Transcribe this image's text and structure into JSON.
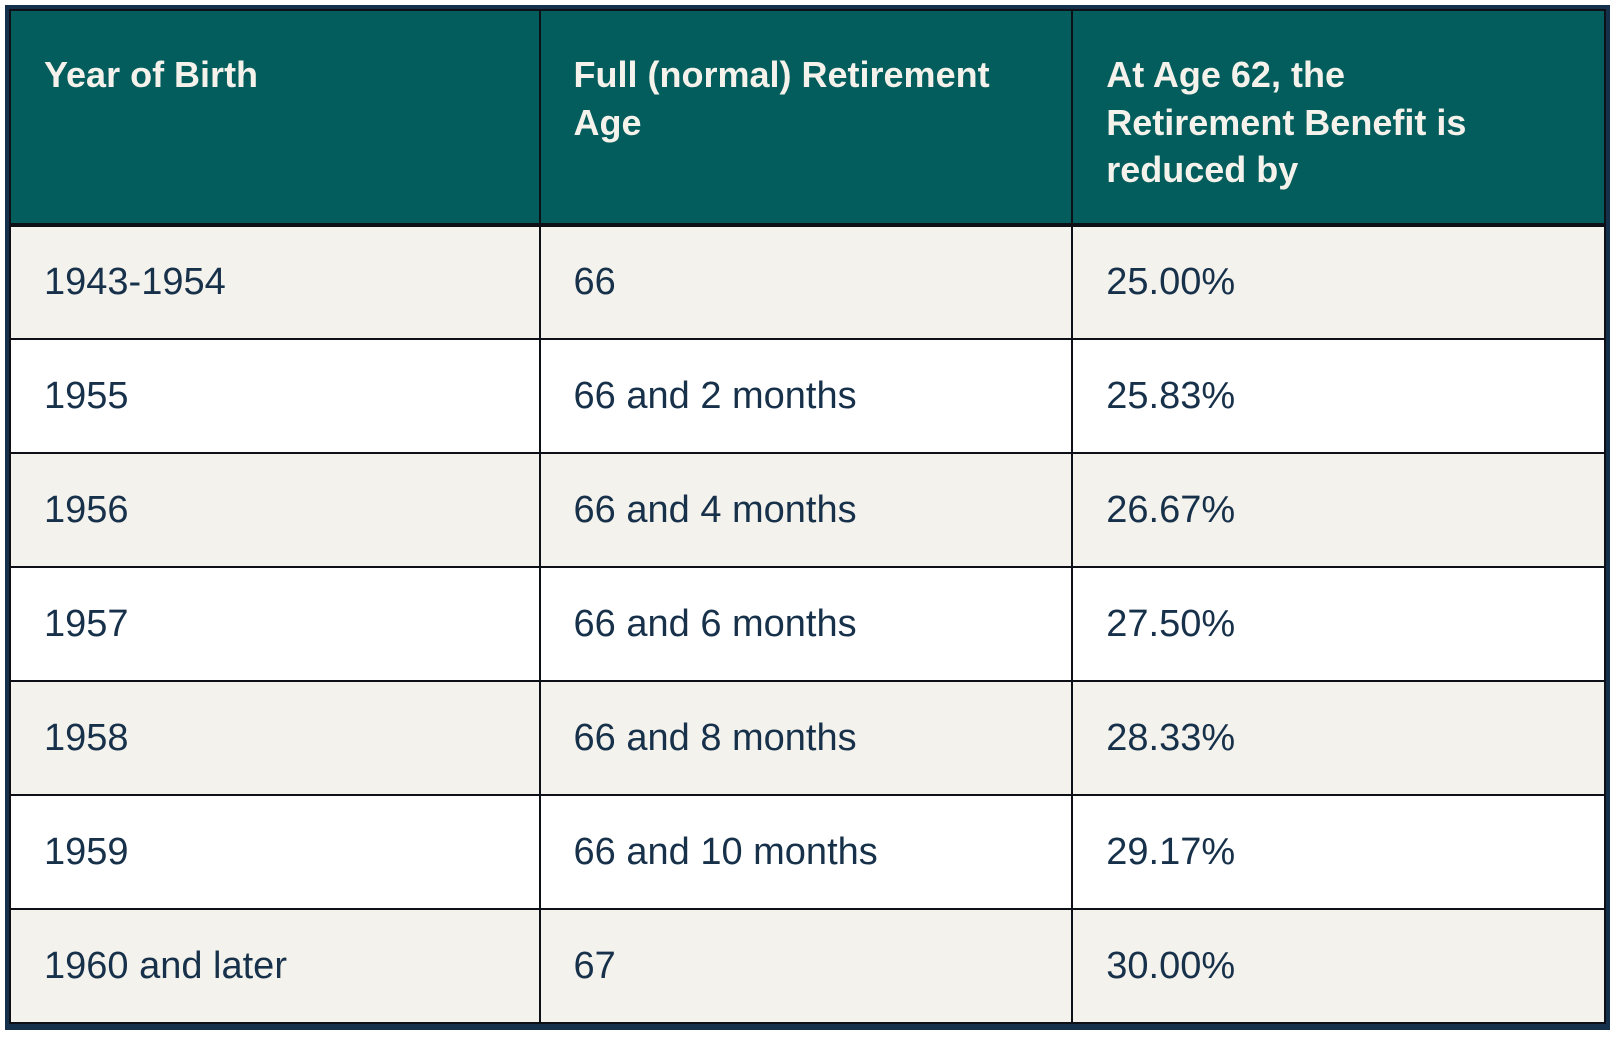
{
  "chart_data": {
    "type": "table",
    "columns": [
      "Year of Birth",
      "Full (normal) Retirement Age",
      "At Age 62, the Retirement Benefit is reduced by"
    ],
    "rows": [
      [
        "1943-1954",
        "66",
        "25.00%"
      ],
      [
        "1955",
        "66 and 2 months",
        "25.83%"
      ],
      [
        "1956",
        "66 and 4 months",
        "26.67%"
      ],
      [
        "1957",
        "66 and 6 months",
        "27.50%"
      ],
      [
        "1958",
        "66 and 8 months",
        "28.33%"
      ],
      [
        "1959",
        "66 and 10 months",
        "29.17%"
      ],
      [
        "1960 and later",
        "67",
        "30.00%"
      ]
    ],
    "layout": {
      "header_position": "top",
      "alternating_rows": true,
      "grid": true
    }
  },
  "colors": {
    "header_background": "#045d5d",
    "header_text": "#f5f2ec",
    "row_alt_background": "#f4f2ed",
    "row_background": "#ffffff",
    "body_text": "#17314a",
    "grid_border": "#0d1117",
    "outer_border": "#14304a"
  }
}
